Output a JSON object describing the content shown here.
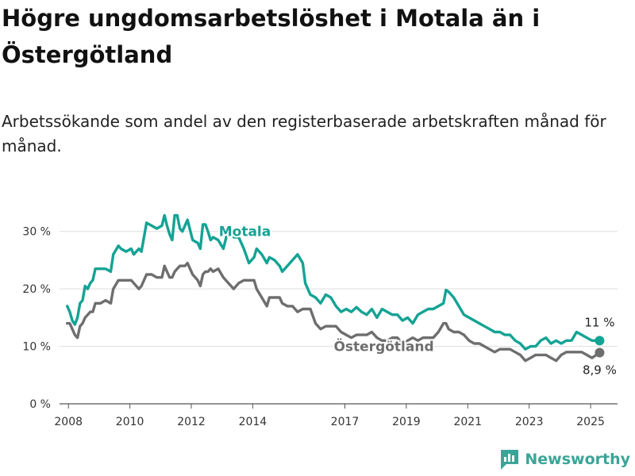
{
  "title": "Högre ungdomsarbetslöshet i Motala än i Östergötland",
  "subtitle": "Arbetssökande som andel av den registerbaserade arbetskraften månad för månad.",
  "brand": {
    "name": "Newsworthy",
    "icon": "newsworthy-chart-logo-icon",
    "color": "#3aa597"
  },
  "chart_data": {
    "type": "line",
    "title": "Högre ungdomsarbetslöshet i Motala än i Östergötland",
    "subtitle": "Arbetssökande som andel av den registerbaserade arbetskraften månad för månad.",
    "xlabel": "",
    "ylabel": "",
    "x_ticks": [
      "2008",
      "2010",
      "2012",
      "2014",
      "2017",
      "2019",
      "2021",
      "2023",
      "2025"
    ],
    "y_ticks": [
      "0 %",
      "10 %",
      "20 %",
      "30 %"
    ],
    "ylim": [
      0,
      33
    ],
    "xlim": [
      "2007-10",
      "2025-12"
    ],
    "grid": true,
    "legend": "inline labels",
    "series": [
      {
        "name": "Motala",
        "color": "#14a394",
        "end_label": "11 %",
        "points": [
          [
            "2008-01",
            17.0
          ],
          [
            "2008-02",
            16.0
          ],
          [
            "2008-03",
            14.5
          ],
          [
            "2008-04",
            13.8
          ],
          [
            "2008-05",
            15.0
          ],
          [
            "2008-06",
            17.5
          ],
          [
            "2008-07",
            18.0
          ],
          [
            "2008-08",
            20.5
          ],
          [
            "2008-09",
            20.0
          ],
          [
            "2008-10",
            21.0
          ],
          [
            "2008-11",
            21.5
          ],
          [
            "2008-12",
            23.5
          ],
          [
            "2009-02",
            23.5
          ],
          [
            "2009-04",
            23.5
          ],
          [
            "2009-06",
            23.0
          ],
          [
            "2009-07",
            26.0
          ],
          [
            "2009-09",
            27.5
          ],
          [
            "2009-10",
            27.0
          ],
          [
            "2009-12",
            26.5
          ],
          [
            "2010-02",
            27.0
          ],
          [
            "2010-03",
            26.0
          ],
          [
            "2010-05",
            27.0
          ],
          [
            "2010-06",
            26.5
          ],
          [
            "2010-08",
            31.5
          ],
          [
            "2010-10",
            31.0
          ],
          [
            "2010-12",
            30.5
          ],
          [
            "2011-02",
            31.0
          ],
          [
            "2011-03",
            32.8
          ],
          [
            "2011-04",
            31.0
          ],
          [
            "2011-05",
            29.5
          ],
          [
            "2011-06",
            28.5
          ],
          [
            "2011-07",
            32.8
          ],
          [
            "2011-08",
            32.8
          ],
          [
            "2011-09",
            30.5
          ],
          [
            "2011-10",
            30.0
          ],
          [
            "2011-11",
            31.0
          ],
          [
            "2011-12",
            32.0
          ],
          [
            "2012-02",
            28.5
          ],
          [
            "2012-04",
            28.0
          ],
          [
            "2012-05",
            27.0
          ],
          [
            "2012-06",
            31.2
          ],
          [
            "2012-07",
            31.2
          ],
          [
            "2012-08",
            30.0
          ],
          [
            "2012-09",
            28.5
          ],
          [
            "2012-10",
            29.0
          ],
          [
            "2012-12",
            28.5
          ],
          [
            "2013-02",
            27.0
          ],
          [
            "2013-04",
            30.5
          ],
          [
            "2013-05",
            30.0
          ],
          [
            "2013-06",
            29.0
          ],
          [
            "2013-08",
            29.0
          ],
          [
            "2013-10",
            27.0
          ],
          [
            "2013-12",
            24.5
          ],
          [
            "2014-02",
            25.5
          ],
          [
            "2014-03",
            27.0
          ],
          [
            "2014-05",
            26.0
          ],
          [
            "2014-07",
            24.5
          ],
          [
            "2014-08",
            25.5
          ],
          [
            "2014-10",
            25.0
          ],
          [
            "2014-12",
            24.0
          ],
          [
            "2015-01",
            23.0
          ],
          [
            "2015-03",
            24.0
          ],
          [
            "2015-05",
            25.0
          ],
          [
            "2015-07",
            26.0
          ],
          [
            "2015-09",
            24.5
          ],
          [
            "2015-10",
            21.0
          ],
          [
            "2015-12",
            19.0
          ],
          [
            "2016-02",
            18.5
          ],
          [
            "2016-04",
            17.5
          ],
          [
            "2016-06",
            19.0
          ],
          [
            "2016-08",
            18.5
          ],
          [
            "2016-10",
            17.0
          ],
          [
            "2016-12",
            16.0
          ],
          [
            "2017-02",
            16.5
          ],
          [
            "2017-04",
            16.0
          ],
          [
            "2017-06",
            16.8
          ],
          [
            "2017-08",
            16.0
          ],
          [
            "2017-10",
            15.5
          ],
          [
            "2017-12",
            16.5
          ],
          [
            "2018-02",
            15.0
          ],
          [
            "2018-04",
            16.5
          ],
          [
            "2018-06",
            16.0
          ],
          [
            "2018-08",
            15.5
          ],
          [
            "2018-10",
            15.5
          ],
          [
            "2018-12",
            14.5
          ],
          [
            "2019-02",
            15.0
          ],
          [
            "2019-04",
            14.0
          ],
          [
            "2019-06",
            15.5
          ],
          [
            "2019-08",
            16.0
          ],
          [
            "2019-10",
            16.5
          ],
          [
            "2019-12",
            16.5
          ],
          [
            "2020-02",
            17.0
          ],
          [
            "2020-04",
            17.5
          ],
          [
            "2020-05",
            19.8
          ],
          [
            "2020-06",
            19.5
          ],
          [
            "2020-08",
            18.5
          ],
          [
            "2020-10",
            17.0
          ],
          [
            "2020-12",
            15.5
          ],
          [
            "2021-02",
            15.0
          ],
          [
            "2021-04",
            14.5
          ],
          [
            "2021-06",
            14.0
          ],
          [
            "2021-08",
            13.5
          ],
          [
            "2021-10",
            13.0
          ],
          [
            "2021-12",
            12.5
          ],
          [
            "2022-02",
            12.5
          ],
          [
            "2022-04",
            12.0
          ],
          [
            "2022-06",
            12.0
          ],
          [
            "2022-08",
            11.0
          ],
          [
            "2022-10",
            10.5
          ],
          [
            "2022-12",
            9.5
          ],
          [
            "2023-02",
            10.0
          ],
          [
            "2023-04",
            10.0
          ],
          [
            "2023-06",
            11.0
          ],
          [
            "2023-08",
            11.5
          ],
          [
            "2023-10",
            10.5
          ],
          [
            "2023-12",
            11.0
          ],
          [
            "2024-02",
            10.5
          ],
          [
            "2024-04",
            11.0
          ],
          [
            "2024-06",
            11.0
          ],
          [
            "2024-08",
            12.5
          ],
          [
            "2024-10",
            12.0
          ],
          [
            "2024-12",
            11.5
          ],
          [
            "2025-02",
            11.0
          ],
          [
            "2025-05",
            11.0
          ]
        ]
      },
      {
        "name": "Östergötland",
        "color": "#6e6e6e",
        "end_label": "8,9 %",
        "points": [
          [
            "2008-01",
            14.0
          ],
          [
            "2008-02",
            14.0
          ],
          [
            "2008-03",
            13.0
          ],
          [
            "2008-04",
            12.0
          ],
          [
            "2008-05",
            11.5
          ],
          [
            "2008-06",
            13.5
          ],
          [
            "2008-07",
            14.0
          ],
          [
            "2008-08",
            15.0
          ],
          [
            "2008-09",
            15.5
          ],
          [
            "2008-10",
            16.0
          ],
          [
            "2008-11",
            16.0
          ],
          [
            "2008-12",
            17.5
          ],
          [
            "2009-02",
            17.5
          ],
          [
            "2009-04",
            18.0
          ],
          [
            "2009-06",
            17.5
          ],
          [
            "2009-07",
            20.0
          ],
          [
            "2009-09",
            21.5
          ],
          [
            "2009-10",
            21.5
          ],
          [
            "2009-12",
            21.5
          ],
          [
            "2010-02",
            21.5
          ],
          [
            "2010-03",
            21.0
          ],
          [
            "2010-05",
            20.0
          ],
          [
            "2010-06",
            20.5
          ],
          [
            "2010-08",
            22.5
          ],
          [
            "2010-10",
            22.5
          ],
          [
            "2010-12",
            22.0
          ],
          [
            "2011-02",
            22.0
          ],
          [
            "2011-03",
            24.0
          ],
          [
            "2011-04",
            23.0
          ],
          [
            "2011-05",
            22.0
          ],
          [
            "2011-06",
            22.0
          ],
          [
            "2011-07",
            23.0
          ],
          [
            "2011-08",
            23.5
          ],
          [
            "2011-09",
            24.0
          ],
          [
            "2011-10",
            24.0
          ],
          [
            "2011-11",
            24.0
          ],
          [
            "2011-12",
            24.5
          ],
          [
            "2012-02",
            22.5
          ],
          [
            "2012-04",
            21.5
          ],
          [
            "2012-05",
            20.5
          ],
          [
            "2012-06",
            22.5
          ],
          [
            "2012-07",
            23.0
          ],
          [
            "2012-08",
            23.0
          ],
          [
            "2012-09",
            23.5
          ],
          [
            "2012-10",
            23.0
          ],
          [
            "2012-12",
            23.5
          ],
          [
            "2013-02",
            22.0
          ],
          [
            "2013-04",
            21.0
          ],
          [
            "2013-05",
            20.5
          ],
          [
            "2013-06",
            20.0
          ],
          [
            "2013-08",
            21.0
          ],
          [
            "2013-10",
            21.5
          ],
          [
            "2013-12",
            21.5
          ],
          [
            "2014-02",
            21.5
          ],
          [
            "2014-03",
            20.0
          ],
          [
            "2014-05",
            18.5
          ],
          [
            "2014-07",
            17.0
          ],
          [
            "2014-08",
            18.5
          ],
          [
            "2014-10",
            18.5
          ],
          [
            "2014-12",
            18.5
          ],
          [
            "2015-01",
            17.5
          ],
          [
            "2015-03",
            17.0
          ],
          [
            "2015-05",
            17.0
          ],
          [
            "2015-07",
            16.0
          ],
          [
            "2015-09",
            16.5
          ],
          [
            "2015-10",
            16.5
          ],
          [
            "2015-12",
            16.5
          ],
          [
            "2016-02",
            14.0
          ],
          [
            "2016-04",
            13.0
          ],
          [
            "2016-06",
            13.5
          ],
          [
            "2016-08",
            13.5
          ],
          [
            "2016-10",
            13.5
          ],
          [
            "2016-12",
            12.5
          ],
          [
            "2017-02",
            12.0
          ],
          [
            "2017-04",
            11.5
          ],
          [
            "2017-06",
            12.0
          ],
          [
            "2017-08",
            12.0
          ],
          [
            "2017-10",
            12.0
          ],
          [
            "2017-12",
            12.5
          ],
          [
            "2018-02",
            11.5
          ],
          [
            "2018-04",
            11.0
          ],
          [
            "2018-06",
            11.0
          ],
          [
            "2018-08",
            11.5
          ],
          [
            "2018-10",
            11.5
          ],
          [
            "2018-12",
            10.5
          ],
          [
            "2019-02",
            11.0
          ],
          [
            "2019-04",
            11.5
          ],
          [
            "2019-06",
            11.0
          ],
          [
            "2019-08",
            11.5
          ],
          [
            "2019-10",
            11.5
          ],
          [
            "2019-12",
            11.5
          ],
          [
            "2020-02",
            12.5
          ],
          [
            "2020-04",
            14.0
          ],
          [
            "2020-05",
            14.0
          ],
          [
            "2020-06",
            13.0
          ],
          [
            "2020-08",
            12.5
          ],
          [
            "2020-10",
            12.5
          ],
          [
            "2020-12",
            12.0
          ],
          [
            "2021-02",
            11.0
          ],
          [
            "2021-04",
            10.5
          ],
          [
            "2021-06",
            10.5
          ],
          [
            "2021-08",
            10.0
          ],
          [
            "2021-10",
            9.5
          ],
          [
            "2021-12",
            9.0
          ],
          [
            "2022-02",
            9.5
          ],
          [
            "2022-04",
            9.5
          ],
          [
            "2022-06",
            9.5
          ],
          [
            "2022-08",
            9.0
          ],
          [
            "2022-10",
            8.5
          ],
          [
            "2022-12",
            7.5
          ],
          [
            "2023-02",
            8.0
          ],
          [
            "2023-04",
            8.5
          ],
          [
            "2023-06",
            8.5
          ],
          [
            "2023-08",
            8.5
          ],
          [
            "2023-10",
            8.0
          ],
          [
            "2023-12",
            7.5
          ],
          [
            "2024-02",
            8.5
          ],
          [
            "2024-04",
            9.0
          ],
          [
            "2024-06",
            9.0
          ],
          [
            "2024-08",
            9.0
          ],
          [
            "2024-10",
            9.0
          ],
          [
            "2024-12",
            8.5
          ],
          [
            "2025-02",
            8.0
          ],
          [
            "2025-05",
            8.9
          ]
        ]
      }
    ]
  }
}
